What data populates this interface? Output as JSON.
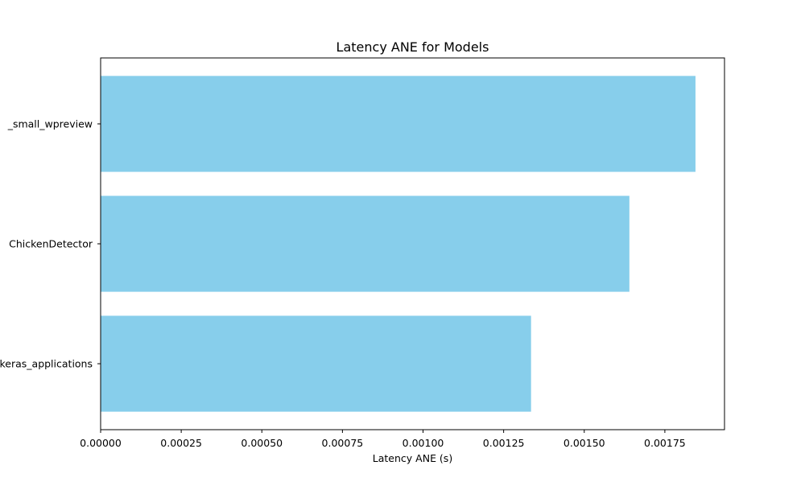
{
  "chart_data": {
    "type": "bar",
    "orientation": "horizontal",
    "title": "Latency ANE for Models",
    "xlabel": "Latency ANE (s)",
    "ylabel": "",
    "categories": [
      "keras_applications",
      "ChickenDetector",
      "_small_wpreview"
    ],
    "values": [
      0.001335,
      0.00164,
      0.001845
    ],
    "xlim": [
      0,
      0.001935
    ],
    "xticks": [
      "0.00000",
      "0.00025",
      "0.00050",
      "0.00075",
      "0.00100",
      "0.00125",
      "0.00150",
      "0.00175"
    ],
    "xtick_values": [
      0,
      0.00025,
      0.0005,
      0.00075,
      0.001,
      0.00125,
      0.0015,
      0.00175
    ],
    "grid": false,
    "legend": "none",
    "colors": {
      "bar": "#87ceeb",
      "axis": "#000000",
      "background": "#ffffff"
    }
  }
}
